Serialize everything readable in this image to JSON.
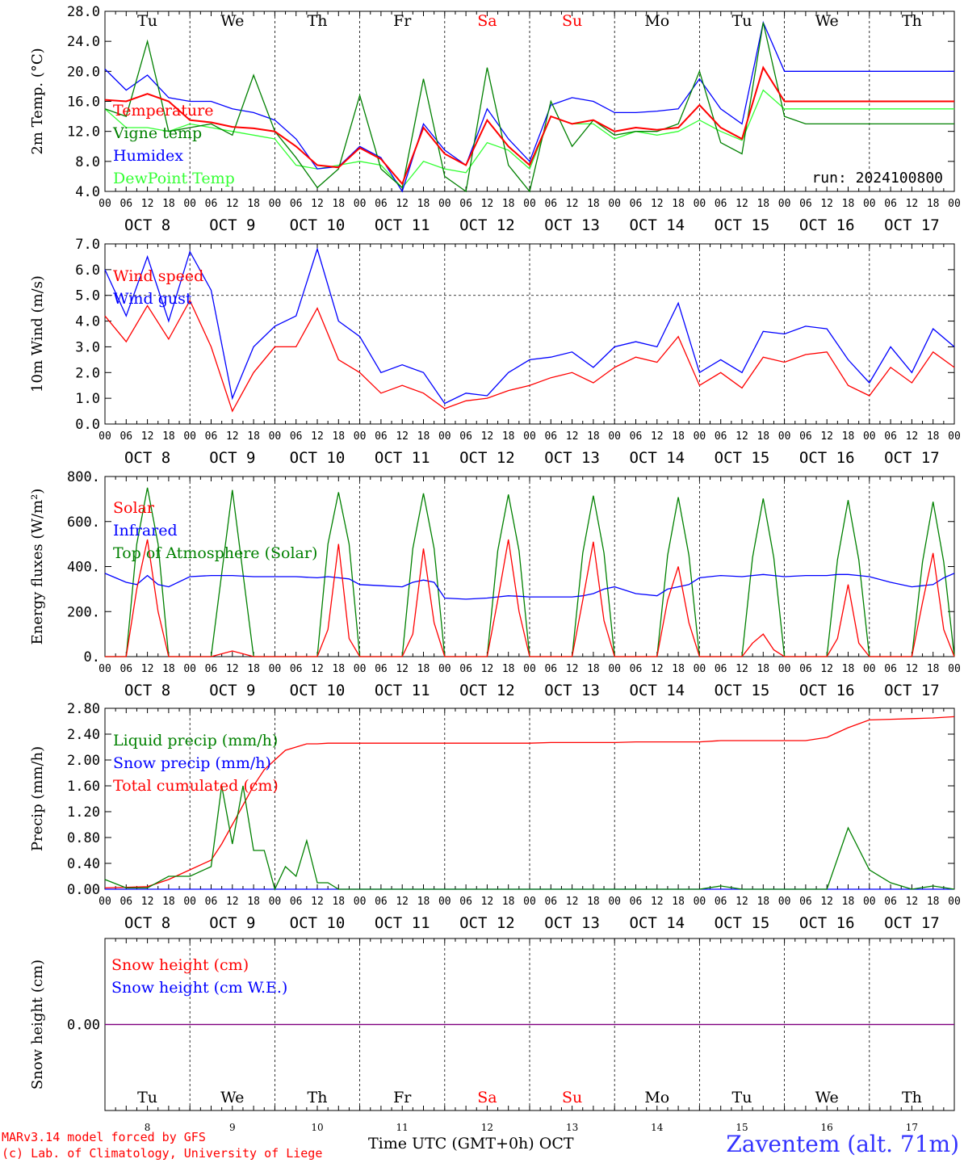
{
  "meta": {
    "run_label": "run: 2024100800",
    "model_line1": "MARv3.14 model forced by GFS",
    "model_line2": "(c) Lab. of Climatology, University of Liege",
    "time_axis_label": "Time UTC (GMT+0h)",
    "month_label": "OCT",
    "station": "Zaventem (alt. 71m)"
  },
  "colors": {
    "red": "#ff0000",
    "blue": "#0000ff",
    "green": "#008000",
    "lightgreen": "#33ff33",
    "purple": "#800080",
    "grid": "#000000"
  },
  "days": {
    "weekdays": [
      "Tu",
      "We",
      "Th",
      "Fr",
      "Sa",
      "Su",
      "Mo",
      "Tu",
      "We",
      "Th"
    ],
    "weekend_flags": [
      false,
      false,
      false,
      false,
      true,
      true,
      false,
      false,
      false,
      false
    ],
    "dates": [
      "OCT  8",
      "OCT  9",
      "OCT 10",
      "OCT 11",
      "OCT 12",
      "OCT 13",
      "OCT 14",
      "OCT 15",
      "OCT 16",
      "OCT 17"
    ],
    "day_numbers": [
      "8",
      "9",
      "10",
      "11",
      "12",
      "13",
      "14",
      "15",
      "16",
      "17"
    ],
    "hour_ticks": [
      "00",
      "06",
      "12",
      "18"
    ],
    "end_tick": "00"
  },
  "chart_data": [
    {
      "type": "line",
      "ylabel": "2m Temp. (°C)",
      "ylim": [
        4.0,
        28.0
      ],
      "yticks": [
        "4.0",
        "8.0",
        "12.0",
        "16.0",
        "20.0",
        "24.0",
        "28.0"
      ],
      "weekday_header": true,
      "x_hours": [
        0,
        6,
        12,
        18,
        24,
        30,
        36,
        42,
        48,
        54,
        60,
        66,
        72,
        78,
        84,
        90,
        96,
        102,
        108,
        114,
        120,
        126,
        132,
        138,
        144,
        150,
        156,
        162,
        168,
        174,
        180,
        186,
        192,
        198,
        204,
        210,
        216,
        222,
        228,
        234,
        240
      ],
      "series": [
        {
          "name": "Temperature",
          "color": "red",
          "values": [
            16.2,
            16.0,
            17.0,
            16.0,
            13.5,
            13.2,
            12.6,
            12.4,
            12.0,
            10.0,
            7.5,
            7.2,
            9.8,
            8.3,
            5.0,
            12.5,
            9.0,
            7.5,
            13.5,
            10.0,
            7.5,
            14.0,
            13.0,
            13.5,
            12.0,
            12.5,
            12.2,
            12.5,
            15.5,
            12.5,
            11.0,
            20.5,
            16.0,
            16.0,
            16.0,
            16.0,
            16.0,
            16.0,
            16.0,
            16.0,
            16.0
          ]
        },
        {
          "name": "Vigne temp",
          "color": "green",
          "values": [
            15.0,
            14.0,
            24.0,
            12.0,
            12.5,
            13.0,
            11.5,
            19.5,
            12.0,
            8.5,
            4.5,
            7.0,
            16.8,
            7.0,
            4.5,
            19.0,
            6.0,
            4.0,
            20.5,
            7.5,
            4.0,
            16.0,
            10.0,
            13.5,
            11.5,
            12.0,
            12.0,
            13.0,
            20.0,
            10.5,
            9.0,
            26.5,
            14.0,
            13.0,
            13.0,
            13.0,
            13.0,
            13.0,
            13.0,
            13.0,
            13.0
          ]
        },
        {
          "name": "Humidex",
          "color": "blue",
          "values": [
            20.3,
            17.5,
            19.5,
            16.5,
            16.0,
            16.0,
            15.0,
            14.5,
            13.5,
            11.0,
            7.0,
            7.3,
            10.0,
            8.5,
            4.0,
            13.0,
            9.5,
            7.5,
            15.0,
            11.0,
            8.0,
            15.5,
            16.5,
            16.0,
            14.5,
            14.5,
            14.7,
            15.0,
            19.0,
            15.0,
            13.0,
            26.5,
            20.0,
            20.0,
            20.0,
            20.0,
            20.0,
            20.0,
            20.0,
            20.0,
            20.0
          ]
        },
        {
          "name": "DewPoint Temp",
          "color": "lightgreen",
          "values": [
            15.0,
            12.5,
            12.5,
            12.0,
            13.0,
            12.5,
            12.0,
            11.5,
            11.0,
            7.5,
            7.0,
            7.5,
            8.0,
            7.5,
            4.5,
            8.0,
            7.0,
            6.5,
            10.5,
            9.5,
            7.0,
            14.0,
            13.0,
            13.0,
            11.0,
            12.0,
            11.5,
            12.0,
            13.5,
            12.0,
            10.8,
            17.5,
            15.0,
            15.0,
            15.0,
            15.0,
            15.0,
            15.0,
            15.0,
            15.0,
            15.0
          ]
        }
      ]
    },
    {
      "type": "line",
      "ylabel": "10m Wind (m/s)",
      "ylim": [
        0.0,
        7.0
      ],
      "yticks": [
        "0.0",
        "1.0",
        "2.0",
        "3.0",
        "4.0",
        "5.0",
        "6.0",
        "7.0"
      ],
      "reference_line": 5.0,
      "x_hours": [
        0,
        6,
        12,
        18,
        24,
        30,
        36,
        42,
        48,
        54,
        60,
        66,
        72,
        78,
        84,
        90,
        96,
        102,
        108,
        114,
        120,
        126,
        132,
        138,
        144,
        150,
        156,
        162,
        168,
        174,
        180,
        186,
        192,
        198,
        204,
        210,
        216,
        222,
        228,
        234,
        240
      ],
      "series": [
        {
          "name": "Wind speed",
          "color": "red",
          "values": [
            4.2,
            3.2,
            4.6,
            3.3,
            4.8,
            3.0,
            0.5,
            2.0,
            3.0,
            3.0,
            4.5,
            2.5,
            2.0,
            1.2,
            1.5,
            1.2,
            0.6,
            0.9,
            1.0,
            1.3,
            1.5,
            1.8,
            2.0,
            1.6,
            2.2,
            2.6,
            2.4,
            3.4,
            1.5,
            2.0,
            1.4,
            2.6,
            2.4,
            2.7,
            2.8,
            1.5,
            1.1,
            2.2,
            1.6,
            2.8,
            2.2
          ]
        },
        {
          "name": "Wind gust",
          "color": "blue",
          "values": [
            6.0,
            4.2,
            6.5,
            4.0,
            6.7,
            5.2,
            1.0,
            3.0,
            3.8,
            4.2,
            6.8,
            4.0,
            3.4,
            2.0,
            2.3,
            2.0,
            0.8,
            1.2,
            1.1,
            2.0,
            2.5,
            2.6,
            2.8,
            2.2,
            3.0,
            3.2,
            3.0,
            4.7,
            2.0,
            2.5,
            2.0,
            3.6,
            3.5,
            3.8,
            3.7,
            2.5,
            1.6,
            3.0,
            2.0,
            3.7,
            3.0
          ]
        }
      ]
    },
    {
      "type": "line",
      "ylabel": "Energy fluxes (W/m²)",
      "ylim": [
        0,
        800
      ],
      "yticks": [
        "0.",
        "200.",
        "400.",
        "600.",
        "800."
      ],
      "x_hours": [
        0,
        6,
        9,
        12,
        15,
        18,
        24,
        30,
        36,
        42,
        48,
        54,
        60,
        63,
        66,
        69,
        72,
        78,
        84,
        87,
        90,
        93,
        96,
        102,
        108,
        111,
        114,
        117,
        120,
        126,
        132,
        135,
        138,
        141,
        144,
        150,
        156,
        159,
        162,
        165,
        168,
        174,
        180,
        183,
        186,
        189,
        192,
        198,
        204,
        207,
        210,
        213,
        216,
        222,
        228,
        231,
        234,
        237,
        240
      ],
      "series": [
        {
          "name": "Solar",
          "color": "red",
          "values": [
            0,
            0,
            300,
            520,
            200,
            0,
            0,
            0,
            25,
            0,
            0,
            0,
            0,
            120,
            500,
            80,
            0,
            0,
            0,
            100,
            480,
            150,
            0,
            0,
            0,
            250,
            520,
            200,
            0,
            0,
            0,
            250,
            510,
            160,
            0,
            0,
            0,
            250,
            400,
            150,
            0,
            0,
            0,
            60,
            100,
            30,
            0,
            0,
            0,
            80,
            320,
            60,
            0,
            0,
            0,
            240,
            460,
            120,
            0
          ]
        },
        {
          "name": "Infrared",
          "color": "blue",
          "values": [
            370,
            330,
            320,
            360,
            320,
            310,
            355,
            360,
            360,
            355,
            355,
            355,
            350,
            355,
            350,
            345,
            320,
            315,
            310,
            330,
            340,
            330,
            260,
            255,
            260,
            265,
            270,
            268,
            265,
            265,
            265,
            270,
            280,
            300,
            310,
            280,
            270,
            300,
            310,
            320,
            350,
            360,
            355,
            360,
            365,
            360,
            355,
            360,
            360,
            365,
            365,
            360,
            355,
            330,
            310,
            315,
            320,
            350,
            370
          ]
        },
        {
          "name": "Top of Atmosphere (Solar)",
          "color": "green",
          "values": [
            0,
            0,
            500,
            750,
            500,
            0,
            0,
            0,
            740,
            0,
            0,
            0,
            0,
            500,
            730,
            500,
            0,
            0,
            0,
            480,
            725,
            480,
            0,
            0,
            0,
            470,
            720,
            470,
            0,
            0,
            0,
            460,
            715,
            460,
            0,
            0,
            0,
            450,
            708,
            450,
            0,
            0,
            0,
            440,
            702,
            440,
            0,
            0,
            0,
            430,
            695,
            430,
            0,
            0,
            0,
            420,
            688,
            420,
            0
          ]
        }
      ]
    },
    {
      "type": "line",
      "ylabel": "Precip (mm/h)",
      "ylim": [
        0.0,
        2.8
      ],
      "yticks": [
        "0.00",
        "0.40",
        "0.80",
        "1.20",
        "1.60",
        "2.00",
        "2.40",
        "2.80"
      ],
      "x_hours": [
        0,
        6,
        12,
        18,
        24,
        30,
        33,
        36,
        39,
        42,
        45,
        48,
        51,
        54,
        57,
        60,
        63,
        66,
        72,
        78,
        84,
        90,
        96,
        102,
        108,
        114,
        120,
        126,
        132,
        135,
        138,
        141,
        144,
        150,
        156,
        162,
        168,
        174,
        180,
        186,
        192,
        198,
        204,
        210,
        216,
        222,
        228,
        234,
        240
      ],
      "series": [
        {
          "name": "Liquid precip (mm/h)",
          "color": "green",
          "values": [
            0.15,
            0.02,
            0.02,
            0.2,
            0.2,
            0.35,
            1.6,
            0.7,
            1.6,
            0.6,
            0.6,
            0.0,
            0.35,
            0.2,
            0.75,
            0.1,
            0.1,
            0.0,
            0.0,
            0.0,
            0.0,
            0.0,
            0.0,
            0.0,
            0.0,
            0.0,
            0.0,
            0.0,
            0.0,
            0.0,
            0.0,
            0.0,
            0.0,
            0.0,
            0.0,
            0.0,
            0.0,
            0.05,
            0.0,
            0.0,
            0.0,
            0.0,
            0.0,
            0.95,
            0.3,
            0.1,
            0.0,
            0.05,
            0.0
          ]
        },
        {
          "name": "Snow precip (mm/h)",
          "color": "blue",
          "values": [
            0,
            0,
            0,
            0,
            0,
            0,
            0,
            0,
            0,
            0,
            0,
            0,
            0,
            0,
            0,
            0,
            0,
            0,
            0,
            0,
            0,
            0,
            0,
            0,
            0,
            0,
            0,
            0,
            0,
            0,
            0,
            0,
            0,
            0,
            0,
            0,
            0,
            0,
            0,
            0,
            0,
            0,
            0,
            0,
            0,
            0,
            0,
            0,
            0
          ]
        },
        {
          "name": "Total cumulated (cm)",
          "color": "red",
          "values": [
            0.02,
            0.03,
            0.04,
            0.15,
            0.3,
            0.45,
            0.7,
            1.0,
            1.3,
            1.6,
            1.85,
            2.0,
            2.15,
            2.2,
            2.25,
            2.25,
            2.26,
            2.26,
            2.26,
            2.26,
            2.26,
            2.26,
            2.26,
            2.26,
            2.26,
            2.26,
            2.26,
            2.27,
            2.27,
            2.27,
            2.27,
            2.27,
            2.27,
            2.28,
            2.28,
            2.28,
            2.28,
            2.3,
            2.3,
            2.3,
            2.3,
            2.3,
            2.35,
            2.5,
            2.62,
            2.63,
            2.64,
            2.65,
            2.67
          ]
        }
      ]
    },
    {
      "type": "line",
      "ylabel": "Snow height (cm)",
      "ylim": [
        -1.0,
        1.0
      ],
      "yticks": [
        "0.00"
      ],
      "weekday_footer": true,
      "x_hours": [
        0,
        240
      ],
      "series": [
        {
          "name": "Snow height (cm)",
          "color": "red",
          "values": [
            0.0,
            0.0
          ]
        },
        {
          "name": "Snow height (cm W.E.)",
          "color": "blue",
          "values": [
            0.0,
            0.0
          ]
        }
      ]
    }
  ]
}
